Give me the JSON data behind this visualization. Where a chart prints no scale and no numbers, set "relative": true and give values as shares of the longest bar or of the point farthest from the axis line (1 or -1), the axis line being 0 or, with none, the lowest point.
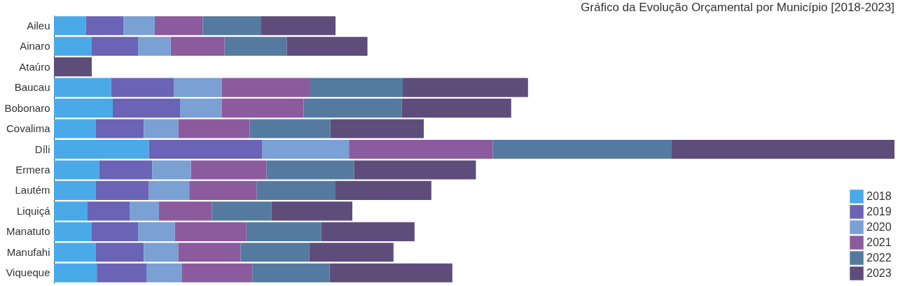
{
  "chart_data": {
    "type": "bar",
    "title": "Gráfico da Evolução Orçamental por Município [2018-2023]",
    "orientation": "horizontal",
    "stacked": true,
    "relative": true,
    "legend": "bottom right",
    "grid": false,
    "categories": [
      "Aileu",
      "Ainaro",
      "Ataúro",
      "Baucau",
      "Bobonaro",
      "Covalima",
      "Díli",
      "Ermera",
      "Lautém",
      "Liquiçá",
      "Manatuto",
      "Manufahi",
      "Viqueque"
    ],
    "series": [
      {
        "name": "2018",
        "color": "#4aaae8",
        "values": [
          0.038,
          0.045,
          0,
          0.068,
          0.07,
          0.05,
          0.113,
          0.054,
          0.05,
          0.04,
          0.045,
          0.05,
          0.051
        ]
      },
      {
        "name": "2019",
        "color": "#6b63b5",
        "values": [
          0.045,
          0.055,
          0,
          0.075,
          0.08,
          0.057,
          0.135,
          0.063,
          0.063,
          0.05,
          0.055,
          0.057,
          0.059
        ]
      },
      {
        "name": "2020",
        "color": "#7aa0d4",
        "values": [
          0.037,
          0.039,
          0,
          0.057,
          0.05,
          0.041,
          0.103,
          0.046,
          0.048,
          0.035,
          0.044,
          0.041,
          0.042
        ]
      },
      {
        "name": "2021",
        "color": "#8b5b9e",
        "values": [
          0.057,
          0.064,
          0,
          0.105,
          0.097,
          0.085,
          0.171,
          0.09,
          0.08,
          0.063,
          0.085,
          0.074,
          0.084
        ]
      },
      {
        "name": "2022",
        "color": "#557aa0",
        "values": [
          0.069,
          0.074,
          0,
          0.11,
          0.117,
          0.096,
          0.213,
          0.104,
          0.094,
          0.071,
          0.089,
          0.082,
          0.092
        ]
      },
      {
        "name": "2023",
        "color": "#5e4d7a",
        "values": [
          0.089,
          0.096,
          0.045,
          0.149,
          0.13,
          0.111,
          0.265,
          0.145,
          0.114,
          0.096,
          0.111,
          0.1,
          0.146
        ]
      }
    ]
  }
}
